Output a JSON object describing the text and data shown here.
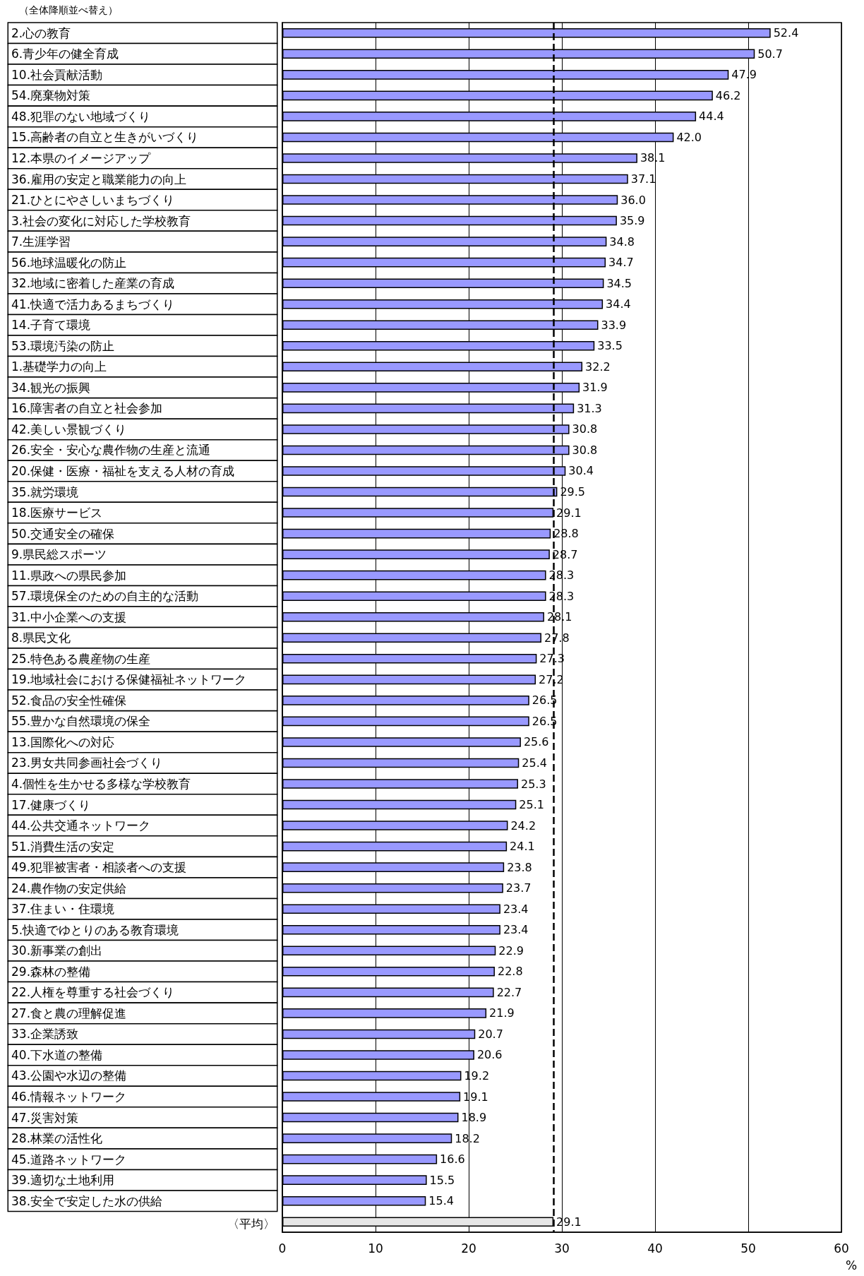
{
  "chart_data": {
    "type": "bar",
    "orientation": "horizontal",
    "title": "（全体降順並べ替え）",
    "xlabel": "%",
    "categories": [
      "2.心の教育",
      "6.青少年の健全育成",
      "10.社会貢献活動",
      "54.廃棄物対策",
      "48.犯罪のない地域づくり",
      "15.高齢者の自立と生きがいづくり",
      "12.本県のイメージアップ",
      "36.雇用の安定と職業能力の向上",
      "21.ひとにやさしいまちづくり",
      "3.社会の変化に対応した学校教育",
      "7.生涯学習",
      "56.地球温暖化の防止",
      "32.地域に密着した産業の育成",
      "41.快適で活力あるまちづくり",
      "14.子育て環境",
      "53.環境汚染の防止",
      "1.基礎学力の向上",
      "34.観光の振興",
      "16.障害者の自立と社会参加",
      "42.美しい景観づくり",
      "26.安全・安心な農作物の生産と流通",
      "20.保健・医療・福祉を支える人材の育成",
      "35.就労環境",
      "18.医療サービス",
      "50.交通安全の確保",
      "9.県民総スポーツ",
      "11.県政への県民参加",
      "57.環境保全のための自主的な活動",
      "31.中小企業への支援",
      "8.県民文化",
      "25.特色ある農産物の生産",
      "19.地域社会における保健福祉ネットワーク",
      "52.食品の安全性確保",
      "55.豊かな自然環境の保全",
      "13.国際化への対応",
      "23.男女共同参画社会づくり",
      "4.個性を生かせる多様な学校教育",
      "17.健康づくり",
      "44.公共交通ネットワーク",
      "51.消費生活の安定",
      "49.犯罪被害者・相談者への支援",
      "24.農作物の安定供給",
      "37.住まい・住環境",
      "5.快適でゆとりのある教育環境",
      "30.新事業の創出",
      "29.森林の整備",
      "22.人権を尊重する社会づくり",
      "27.食と農の理解促進",
      "33.企業誘致",
      "40.下水道の整備",
      "43.公園や水辺の整備",
      "46.情報ネットワーク",
      "47.災害対策",
      "28.林業の活性化",
      "45.道路ネットワーク",
      "39.適切な土地利用",
      "38.安全で安定した水の供給",
      "〈平均〉"
    ],
    "values": [
      52.4,
      50.7,
      47.9,
      46.2,
      44.4,
      42.0,
      38.1,
      37.1,
      36.0,
      35.9,
      34.8,
      34.7,
      34.5,
      34.4,
      33.9,
      33.5,
      32.2,
      31.9,
      31.3,
      30.8,
      30.8,
      30.4,
      29.5,
      29.1,
      28.8,
      28.7,
      28.3,
      28.3,
      28.1,
      27.8,
      27.3,
      27.2,
      26.5,
      26.5,
      25.6,
      25.4,
      25.3,
      25.1,
      24.2,
      24.1,
      23.8,
      23.7,
      23.4,
      23.4,
      22.9,
      22.8,
      22.7,
      21.9,
      20.7,
      20.6,
      19.2,
      19.1,
      18.9,
      18.2,
      16.6,
      15.5,
      15.4,
      29.1
    ],
    "colors": [
      "#9999ff",
      "#9999ff",
      "#9999ff",
      "#9999ff",
      "#9999ff",
      "#9999ff",
      "#9999ff",
      "#9999ff",
      "#9999ff",
      "#9999ff",
      "#9999ff",
      "#9999ff",
      "#9999ff",
      "#9999ff",
      "#9999ff",
      "#9999ff",
      "#9999ff",
      "#9999ff",
      "#9999ff",
      "#9999ff",
      "#9999ff",
      "#9999ff",
      "#9999ff",
      "#9999ff",
      "#9999ff",
      "#9999ff",
      "#9999ff",
      "#9999ff",
      "#9999ff",
      "#9999ff",
      "#9999ff",
      "#9999ff",
      "#9999ff",
      "#9999ff",
      "#9999ff",
      "#9999ff",
      "#9999ff",
      "#9999ff",
      "#9999ff",
      "#9999ff",
      "#9999ff",
      "#9999ff",
      "#9999ff",
      "#9999ff",
      "#9999ff",
      "#9999ff",
      "#9999ff",
      "#9999ff",
      "#9999ff",
      "#9999ff",
      "#9999ff",
      "#9999ff",
      "#9999ff",
      "#9999ff",
      "#9999ff",
      "#9999ff",
      "#9999ff",
      "#e6e6e6"
    ],
    "xlim": [
      0,
      60
    ],
    "xticks": [
      0,
      10,
      20,
      30,
      40,
      50,
      60
    ],
    "ref_lines": [
      {
        "axis": "x",
        "value": 29.1,
        "color": "#000000",
        "line_style": "dashed"
      }
    ],
    "value_labels": [
      "52.4",
      "50.7",
      "47.9",
      "46.2",
      "44.4",
      "42.0",
      "38.1",
      "37.1",
      "36.0",
      "35.9",
      "34.8",
      "34.7",
      "34.5",
      "34.4",
      "33.9",
      "33.5",
      "32.2",
      "31.9",
      "31.3",
      "30.8",
      "30.8",
      "30.4",
      "29.5",
      "29.1",
      "28.8",
      "28.7",
      "28.3",
      "28.3",
      "28.1",
      "27.8",
      "27.3",
      "27.2",
      "26.5",
      "26.5",
      "25.6",
      "25.4",
      "25.3",
      "25.1",
      "24.2",
      "24.1",
      "23.8",
      "23.7",
      "23.4",
      "23.4",
      "22.9",
      "22.8",
      "22.7",
      "21.9",
      "20.7",
      "20.6",
      "19.2",
      "19.1",
      "18.9",
      "18.2",
      "16.6",
      "15.5",
      "15.4",
      "29.1"
    ],
    "grid": "x"
  }
}
